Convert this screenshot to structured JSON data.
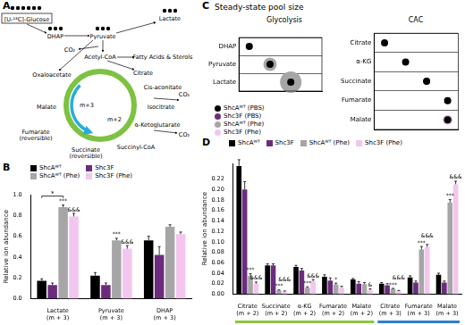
{
  "panel_labels": [
    "A",
    "B",
    "C",
    "D"
  ],
  "diagram": {
    "nodes": [
      "[U-¹³C]-Glucose",
      "DHAP",
      "Pyruvate",
      "Lactate",
      "Acetyl-CoA",
      "Fatty Acids & Sterols",
      "CO₂",
      "CO₂",
      "CO₂",
      "Oxaloacetate",
      "Citrate",
      "Cis-aconitate",
      "Isocitrate",
      "α-Ketoglutarate",
      "Succinyl-CoA",
      "Succinate",
      "(reversible)",
      "Fumarate",
      "(reversible)",
      "Malate",
      "m+3",
      "m+2"
    ]
  },
  "chart_data": [
    {
      "type": "bar",
      "y_label": "Relative ion abundance",
      "grid": false,
      "legend": "top left",
      "categories": [
        "Lactate\n(m + 3)",
        "Pyruvate\n(m + 3)",
        "DHAP\n(m + 3)"
      ],
      "ylim": [
        0,
        1
      ],
      "yticks": [
        {
          "value": 0,
          "label": "0.0"
        },
        {
          "value": 0.2,
          "label": "0.2"
        },
        {
          "value": 0.4,
          "label": "0.4"
        },
        {
          "value": 0.6,
          "label": "0.6"
        },
        {
          "value": 0.8,
          "label": "0.8"
        },
        {
          "value": 1,
          "label": "1.0"
        }
      ],
      "series": [
        {
          "name": "ShcAᵂᵀ",
          "color": "#000000",
          "values": [
            0.17,
            0.22,
            0.56
          ],
          "errors": [
            0.02,
            0.03,
            0.04
          ]
        },
        {
          "name": "Shc3F",
          "color": "#6b2c7e",
          "values": [
            0.13,
            0.13,
            0.42
          ],
          "errors": [
            0.02,
            0.02,
            0.08
          ]
        },
        {
          "name": "ShcAᵂᵀ (Phe)",
          "color": "#a6a6a6",
          "values": [
            0.88,
            0.56,
            0.69
          ],
          "errors": [
            0.02,
            0.02,
            0.02
          ],
          "annotations": [
            "***",
            "***",
            null
          ]
        },
        {
          "name": "Shc3F (Phe)",
          "color": "#f2c6ee",
          "values": [
            0.79,
            0.48,
            0.62
          ],
          "errors": [
            0.03,
            0.03,
            0.02
          ],
          "annotations": [
            "&&&",
            "&&&",
            null
          ]
        }
      ],
      "brackets": [
        {
          "category": "Lactate\n(m + 3)",
          "between": [
            "ShcAᵂᵀ",
            "ShcAᵂᵀ (Phe)"
          ],
          "text": "*"
        }
      ]
    },
    {
      "type": "bubble",
      "title": "Steady-state pool size",
      "grid": true,
      "tick_labels": "y",
      "legend": "bottom",
      "series": [
        {
          "name": "ShcAᵂᵀ (PBS)",
          "color": "#000000"
        },
        {
          "name": "Shc3F (PBS)",
          "color": "#6b2c7e"
        },
        {
          "name": "ShcAᵂᵀ (Phe)",
          "color": "#a6a6a6"
        },
        {
          "name": "Shc3F (Phe)",
          "color": "#f2c6ee"
        }
      ],
      "groups": [
        {
          "title": "Glycolysis",
          "categories": [
            "DHAP",
            "Pyruvate",
            "Lactate"
          ],
          "pool_size": [
            [
              1,
              0.5,
              0.6,
              0.3
            ],
            [
              1,
              0.5,
              3.5,
              2
            ],
            [
              1,
              0.6,
              9,
              4.5
            ]
          ]
        },
        {
          "title": "CAC",
          "categories": [
            "Citrate",
            "α-KG",
            "Succinate",
            "Fumarate",
            "Malate"
          ],
          "pool_size": [
            [
              1,
              0.6,
              0.1,
              0.05
            ],
            [
              1,
              0.7,
              0.5,
              0.15
            ],
            [
              1,
              0.9,
              0.8,
              0.7
            ],
            [
              1,
              0.8,
              0.7,
              0.6
            ],
            [
              1,
              0.7,
              1.2,
              2
            ]
          ]
        }
      ]
    },
    {
      "type": "bar",
      "y_label": "Relative ion abundance",
      "grid": false,
      "legend": "top left",
      "categories": [
        "Citrate\n(m + 2)",
        "Succinate\n(m + 2)",
        "α-KG\n(m + 2)",
        "Fumarate\n(m + 2)",
        "Malate\n(m + 2)",
        "Citrate\n(m + 3)",
        "Fumarate\n(m + 3)",
        "Malate\n(m + 3)"
      ],
      "ylim": [
        0,
        0.25
      ],
      "yticks": [
        {
          "value": 0,
          "label": "0.00"
        },
        {
          "value": 0.02,
          "label": "0.02"
        },
        {
          "value": 0.04,
          "label": "0.04"
        },
        {
          "value": 0.06,
          "label": "0.06"
        },
        {
          "value": 0.08,
          "label": "0.08"
        },
        {
          "value": 0.1,
          "label": "0.10"
        },
        {
          "value": 0.12,
          "label": "0.12"
        },
        {
          "value": 0.14,
          "label": "0.14"
        },
        {
          "value": 0.16,
          "label": "0.16"
        },
        {
          "value": 0.18,
          "label": "0.18"
        },
        {
          "value": 0.2,
          "label": "0.20"
        },
        {
          "value": 0.22,
          "label": "0.22"
        }
      ],
      "series": [
        {
          "name": "ShcAᵂᵀ",
          "color": "#000000",
          "values": [
            0.245,
            0.055,
            0.052,
            0.033,
            0.028,
            0.02,
            0.032,
            0.037
          ],
          "errors": [
            0.012,
            0.003,
            0.003,
            0.004,
            0.002,
            0.002,
            0.003,
            0.003
          ]
        },
        {
          "name": "Shc3F",
          "color": "#6b2c7e",
          "values": [
            0.2,
            0.055,
            0.045,
            0.026,
            0.02,
            0.017,
            0.022,
            0.022
          ],
          "errors": [
            0.015,
            0.003,
            0.004,
            0.005,
            0.004,
            0.003,
            0.003,
            0.003
          ]
        },
        {
          "name": "ShcAᵂᵀ (Phe)",
          "color": "#a6a6a6",
          "values": [
            0.035,
            0.007,
            0.012,
            0.018,
            0.019,
            0.01,
            0.085,
            0.175
          ],
          "errors": [
            0.004,
            0.001,
            0.002,
            0.003,
            0.003,
            0.001,
            0.006,
            0.006
          ],
          "annotations": [
            "***",
            "***",
            "***",
            "*",
            null,
            "***",
            "***",
            "***"
          ]
        },
        {
          "name": "Shc3F (Phe)",
          "color": "#f2c6ee",
          "values": [
            0.02,
            0.005,
            0.025,
            0.013,
            0.008,
            0.006,
            0.09,
            0.21
          ],
          "errors": [
            0.003,
            0.001,
            0.003,
            0.002,
            0.002,
            0.001,
            0.005,
            0.006
          ],
          "annotations": [
            "&&&",
            "&&&",
            "&&&",
            null,
            "&",
            "&&&",
            "&&&",
            "&&&"
          ]
        }
      ],
      "bands": [
        {
          "count": 5,
          "color": "#8dc63f"
        },
        {
          "count": 3,
          "color": "#2f7fd0"
        }
      ]
    }
  ]
}
